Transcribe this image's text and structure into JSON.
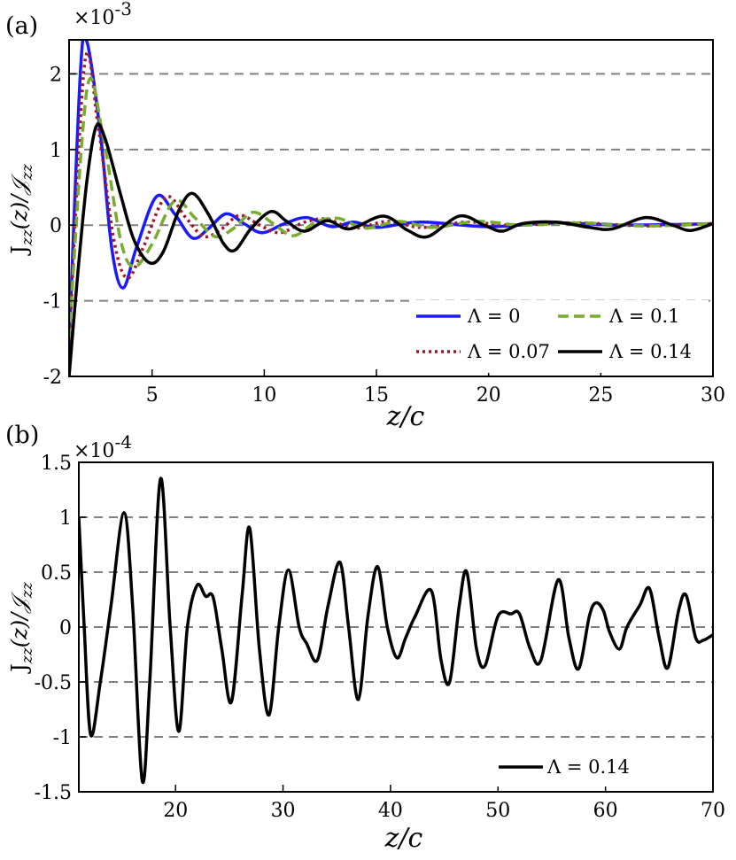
{
  "chart_data": [
    {
      "panel_label": "(a)",
      "type": "line",
      "multiplier_base": "×10",
      "multiplier_exp": "-3",
      "xlabel": "z/c",
      "ylabel": "J_zz(z)/𝒥_zz",
      "ylabel_main": "J",
      "ylabel_sub": "zz",
      "ylabel_rest": "(z)/",
      "ylabel_script": "𝒥",
      "ylabel_sub2": "zz",
      "xlim": [
        1.3,
        30
      ],
      "ylim": [
        -2,
        2.45
      ],
      "xticks": [
        5,
        10,
        15,
        20,
        25,
        30
      ],
      "yticks": [
        -2,
        -1,
        0,
        1,
        2
      ],
      "grid": "horizontal dashed",
      "legend_position": "bottom-right",
      "series": [
        {
          "name": "Λ = 0",
          "color": "#1a1aff",
          "style": "solid",
          "decay": 0.3,
          "x0": 1.3,
          "y0": -1.6,
          "points": [
            [
              1.3,
              -1.6
            ],
            [
              1.8,
              2.0
            ],
            [
              2.1,
              2.42
            ],
            [
              2.7,
              1.2
            ],
            [
              3.2,
              -0.3
            ],
            [
              3.7,
              -0.83
            ],
            [
              4.3,
              -0.3
            ],
            [
              5.2,
              0.38
            ],
            [
              6.0,
              0.15
            ],
            [
              6.8,
              -0.17
            ],
            [
              7.5,
              -0.05
            ],
            [
              8.3,
              0.15
            ],
            [
              9.1,
              0.02
            ],
            [
              9.9,
              -0.1
            ],
            [
              10.9,
              0.02
            ],
            [
              11.9,
              0.1
            ],
            [
              13.0,
              -0.02
            ],
            [
              14.0,
              0.04
            ],
            [
              15.0,
              -0.03
            ],
            [
              17.0,
              0.04
            ],
            [
              20.0,
              -0.02
            ],
            [
              23.0,
              0.03
            ],
            [
              26.0,
              0.0
            ],
            [
              30.0,
              0.02
            ]
          ]
        },
        {
          "name": "Λ = 0.07",
          "color": "#a0172c",
          "style": "dotted",
          "points": [
            [
              1.3,
              -1.6
            ],
            [
              2.0,
              2.15
            ],
            [
              2.6,
              1.3
            ],
            [
              3.3,
              -0.2
            ],
            [
              3.9,
              -0.7
            ],
            [
              4.6,
              -0.3
            ],
            [
              5.6,
              0.37
            ],
            [
              6.5,
              0.1
            ],
            [
              7.3,
              -0.15
            ],
            [
              8.1,
              -0.05
            ],
            [
              8.9,
              0.13
            ],
            [
              9.8,
              0.0
            ],
            [
              10.7,
              -0.1
            ],
            [
              11.8,
              0.04
            ],
            [
              12.8,
              0.08
            ],
            [
              14.0,
              -0.04
            ],
            [
              15.5,
              0.05
            ],
            [
              17.0,
              -0.03
            ],
            [
              19.0,
              0.04
            ],
            [
              21.0,
              0.0
            ],
            [
              24.0,
              0.03
            ],
            [
              27.0,
              -0.01
            ],
            [
              30.0,
              0.02
            ]
          ]
        },
        {
          "name": "Λ = 0.1",
          "color": "#77ac30",
          "style": "dashed",
          "points": [
            [
              1.3,
              -1.5
            ],
            [
              2.1,
              1.8
            ],
            [
              2.8,
              1.2
            ],
            [
              3.6,
              -0.2
            ],
            [
              4.2,
              -0.55
            ],
            [
              5.0,
              -0.25
            ],
            [
              6.0,
              0.32
            ],
            [
              6.9,
              0.1
            ],
            [
              7.8,
              -0.15
            ],
            [
              8.6,
              -0.05
            ],
            [
              9.5,
              0.17
            ],
            [
              10.4,
              0.02
            ],
            [
              11.3,
              -0.14
            ],
            [
              12.3,
              0.04
            ],
            [
              13.3,
              0.09
            ],
            [
              14.5,
              -0.04
            ],
            [
              16.0,
              0.05
            ],
            [
              17.5,
              -0.03
            ],
            [
              19.5,
              0.05
            ],
            [
              21.5,
              0.0
            ],
            [
              24.0,
              0.03
            ],
            [
              27.0,
              -0.01
            ],
            [
              30.0,
              0.02
            ]
          ]
        },
        {
          "name": "Λ = 0.14",
          "color": "#000000",
          "style": "solid",
          "points": [
            [
              1.3,
              -2.0
            ],
            [
              1.7,
              -0.6
            ],
            [
              2.1,
              0.6
            ],
            [
              2.5,
              1.3
            ],
            [
              2.9,
              1.15
            ],
            [
              3.6,
              0.4
            ],
            [
              4.2,
              -0.2
            ],
            [
              4.9,
              -0.5
            ],
            [
              5.5,
              -0.35
            ],
            [
              6.2,
              0.2
            ],
            [
              6.8,
              0.42
            ],
            [
              7.5,
              0.15
            ],
            [
              8.2,
              -0.25
            ],
            [
              8.7,
              -0.33
            ],
            [
              9.4,
              -0.05
            ],
            [
              10.3,
              0.18
            ],
            [
              11.0,
              0.05
            ],
            [
              11.8,
              -0.08
            ],
            [
              12.8,
              0.06
            ],
            [
              13.8,
              -0.05
            ],
            [
              15.3,
              0.12
            ],
            [
              16.4,
              -0.07
            ],
            [
              17.3,
              -0.15
            ],
            [
              18.7,
              0.12
            ],
            [
              19.8,
              0.0
            ],
            [
              20.6,
              -0.08
            ],
            [
              21.5,
              0.02
            ],
            [
              23.0,
              0.04
            ],
            [
              24.5,
              -0.03
            ],
            [
              25.5,
              -0.05
            ],
            [
              27.0,
              0.1
            ],
            [
              28.2,
              0.0
            ],
            [
              29.0,
              -0.07
            ],
            [
              30.0,
              0.02
            ]
          ]
        }
      ],
      "legend": [
        {
          "label": "Λ = 0",
          "color": "#1a1aff",
          "style": "solid"
        },
        {
          "label": "Λ = 0.1",
          "color": "#77ac30",
          "style": "dashed"
        },
        {
          "label": "Λ = 0.07",
          "color": "#a0172c",
          "style": "dotted"
        },
        {
          "label": "Λ = 0.14",
          "color": "#000000",
          "style": "solid"
        }
      ]
    },
    {
      "panel_label": "(b)",
      "type": "line",
      "multiplier_base": "×10",
      "multiplier_exp": "-4",
      "xlabel": "z/c",
      "ylabel": "J_zz(z)/𝒥_zz",
      "ylabel_main": "J",
      "ylabel_sub": "zz",
      "ylabel_rest": "(z)/",
      "ylabel_script": "𝒥",
      "ylabel_sub2": "zz",
      "xlim": [
        11,
        70
      ],
      "ylim": [
        -1.5,
        1.5
      ],
      "xticks": [
        20,
        30,
        40,
        50,
        60,
        70
      ],
      "yticks": [
        -1.5,
        -1,
        -0.5,
        0,
        0.5,
        1,
        1.5
      ],
      "ytick_labels": [
        "-1.5",
        "-1",
        "-0.5",
        "0",
        "0.5",
        "1",
        "1.5"
      ],
      "grid": "horizontal dashed",
      "legend_position": "bottom-right",
      "series": [
        {
          "name": "Λ = 0.14",
          "color": "#000000",
          "style": "solid",
          "points": [
            [
              11.0,
              1.0
            ],
            [
              11.5,
              0.0
            ],
            [
              12.1,
              -0.98
            ],
            [
              13.0,
              -0.5
            ],
            [
              14.0,
              0.2
            ],
            [
              15.2,
              1.04
            ],
            [
              16.0,
              0.2
            ],
            [
              16.9,
              -1.4
            ],
            [
              17.6,
              -0.5
            ],
            [
              18.6,
              1.35
            ],
            [
              19.5,
              0.0
            ],
            [
              20.3,
              -0.95
            ],
            [
              21.1,
              0.0
            ],
            [
              22.0,
              0.38
            ],
            [
              22.8,
              0.28
            ],
            [
              23.5,
              0.27
            ],
            [
              24.3,
              -0.2
            ],
            [
              25.2,
              -0.68
            ],
            [
              26.2,
              0.3
            ],
            [
              26.9,
              0.9
            ],
            [
              27.8,
              -0.2
            ],
            [
              28.7,
              -0.8
            ],
            [
              29.6,
              0.0
            ],
            [
              30.5,
              0.52
            ],
            [
              31.5,
              0.0
            ],
            [
              32.2,
              -0.15
            ],
            [
              33.2,
              -0.3
            ],
            [
              34.2,
              0.2
            ],
            [
              35.3,
              0.59
            ],
            [
              36.1,
              0.0
            ],
            [
              37.0,
              -0.66
            ],
            [
              37.9,
              0.1
            ],
            [
              38.8,
              0.55
            ],
            [
              39.7,
              0.0
            ],
            [
              40.6,
              -0.28
            ],
            [
              41.4,
              -0.1
            ],
            [
              42.3,
              0.1
            ],
            [
              43.8,
              0.33
            ],
            [
              44.7,
              -0.3
            ],
            [
              45.5,
              -0.5
            ],
            [
              46.4,
              0.2
            ],
            [
              47.1,
              0.5
            ],
            [
              48.0,
              -0.2
            ],
            [
              48.8,
              -0.35
            ],
            [
              50.0,
              0.1
            ],
            [
              51.2,
              0.12
            ],
            [
              52.0,
              0.12
            ],
            [
              53.0,
              -0.2
            ],
            [
              54.0,
              -0.3
            ],
            [
              55.6,
              0.43
            ],
            [
              56.6,
              -0.1
            ],
            [
              57.5,
              -0.38
            ],
            [
              58.5,
              0.1
            ],
            [
              59.1,
              0.22
            ],
            [
              59.8,
              0.15
            ],
            [
              60.4,
              -0.05
            ],
            [
              61.3,
              -0.2
            ],
            [
              62.0,
              0.0
            ],
            [
              63.2,
              0.2
            ],
            [
              64.1,
              0.35
            ],
            [
              65.0,
              -0.1
            ],
            [
              65.8,
              -0.37
            ],
            [
              66.8,
              0.15
            ],
            [
              67.5,
              0.29
            ],
            [
              68.4,
              -0.1
            ],
            [
              69.1,
              -0.12
            ],
            [
              70.0,
              -0.07
            ]
          ]
        }
      ],
      "legend": [
        {
          "label": "Λ = 0.14",
          "color": "#000000",
          "style": "solid"
        }
      ]
    }
  ]
}
